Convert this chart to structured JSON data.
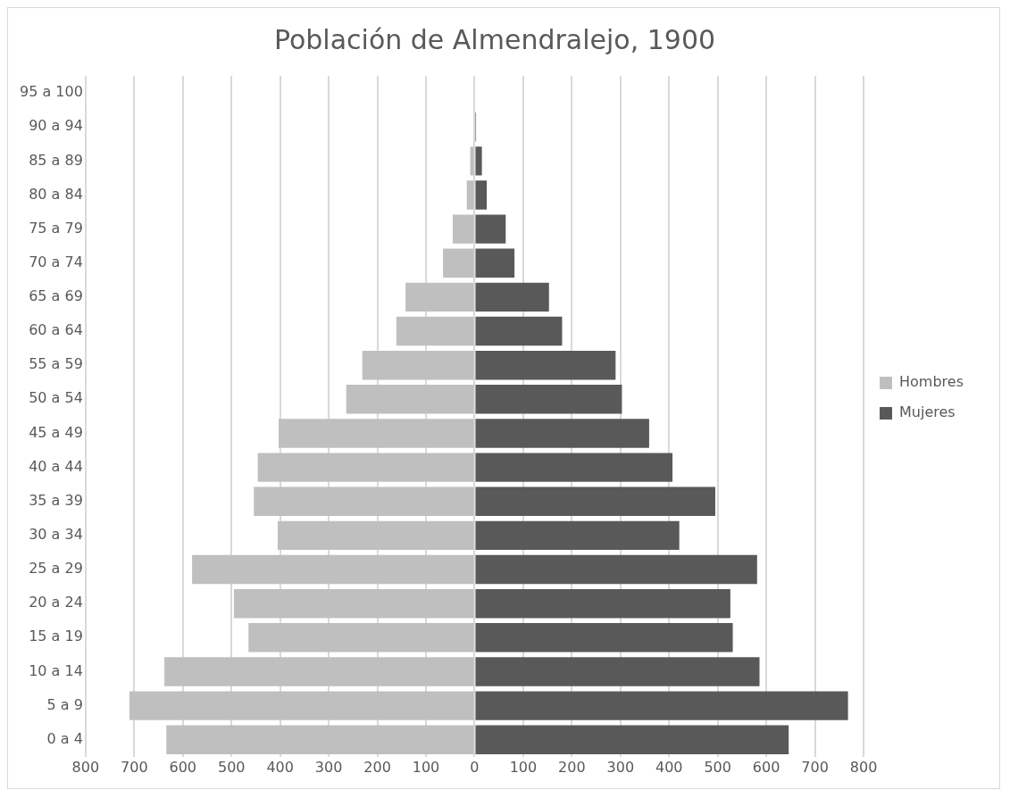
{
  "chart_data": {
    "type": "bar",
    "title": "Población de Almendralejo, 1900",
    "orientation": "horizontal",
    "stacked": true,
    "categories": [
      "95 a 100",
      "90 a 94",
      "85 a 89",
      "80 a 84",
      "75 a 79",
      "70 a 74",
      "65 a 69",
      "60 a 64",
      "55 a 59",
      "50 a 54",
      "45 a 49",
      "40 a 44",
      "35 a 39",
      "30 a 34",
      "25 a 29",
      "20 a 24",
      "15 a 19",
      "10 a 14",
      "5 a 9",
      "0 a 4"
    ],
    "series": [
      {
        "name": "Hombres",
        "color": "#bfbfbf",
        "values": [
          0,
          0,
          -9,
          -16,
          -45,
          -65,
          -142,
          -161,
          -231,
          -264,
          -403,
          -446,
          -454,
          -405,
          -581,
          -495,
          -465,
          -638,
          -710,
          -634
        ]
      },
      {
        "name": "Mujeres",
        "color": "#595959",
        "values": [
          0,
          3,
          15,
          25,
          64,
          82,
          153,
          180,
          290,
          303,
          359,
          407,
          495,
          421,
          581,
          526,
          531,
          586,
          768,
          646
        ]
      }
    ],
    "xlim": [
      -800,
      800
    ],
    "xticks": [
      {
        "value": -800,
        "label": "800"
      },
      {
        "value": -700,
        "label": "700"
      },
      {
        "value": -600,
        "label": "600"
      },
      {
        "value": -500,
        "label": "500"
      },
      {
        "value": -400,
        "label": "400"
      },
      {
        "value": -300,
        "label": "300"
      },
      {
        "value": -200,
        "label": "200"
      },
      {
        "value": -100,
        "label": "100"
      },
      0,
      100,
      200,
      300,
      400,
      500,
      600,
      700,
      800
    ],
    "grid": "x",
    "legend": "right"
  }
}
